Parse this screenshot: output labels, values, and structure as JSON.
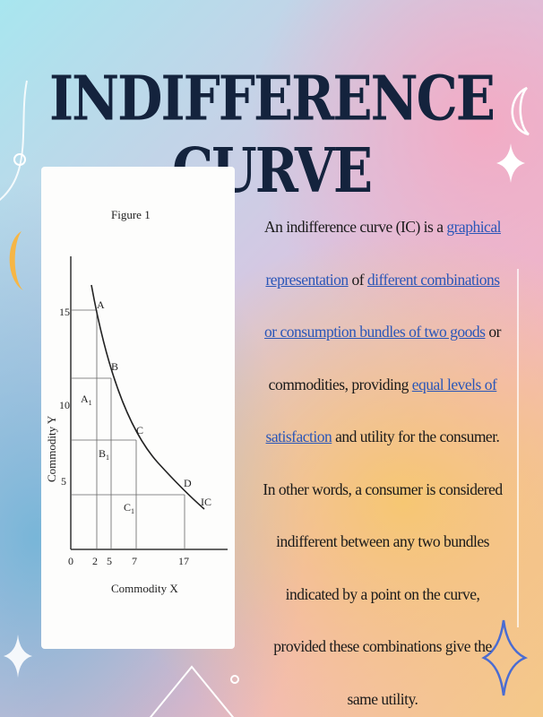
{
  "slide": {
    "title": "INDIFFERENCE CURVE"
  },
  "figure": {
    "caption": "Figure 1",
    "ylabel": "Commodity Y",
    "xlabel": "Commodity X",
    "x_ticks": [
      "0",
      "2",
      "5",
      "7",
      "17"
    ],
    "y_ticks": [
      "5",
      "10",
      "15"
    ],
    "point_labels": [
      "A",
      "B",
      "C",
      "D"
    ],
    "region_labels": {
      "a": "A",
      "a_sub": "1",
      "b": "B",
      "b_sub": "1",
      "c": "C",
      "c_sub": "1"
    },
    "curve_label": "IC"
  },
  "text": {
    "s1": "An indifference curve (IC) is a ",
    "l1": "graphical representation",
    "s2": " of ",
    "l2": "different combinations or consumption bundles of two goods",
    "s3": " or commodities, providing ",
    "l3": "equal levels of satisfaction",
    "s4": " and utility for the consumer. In other words, a consumer is considered indifferent between any two bundles indicated by a point on the curve, provided these combinations give the same utility."
  },
  "colors": {
    "title": "#14233d",
    "link": "#2a56b8",
    "accent_moon": "#f6b646"
  },
  "icons": [
    "sparkle-icon",
    "moon-icon",
    "triangle-icon",
    "circle-icon"
  ]
}
